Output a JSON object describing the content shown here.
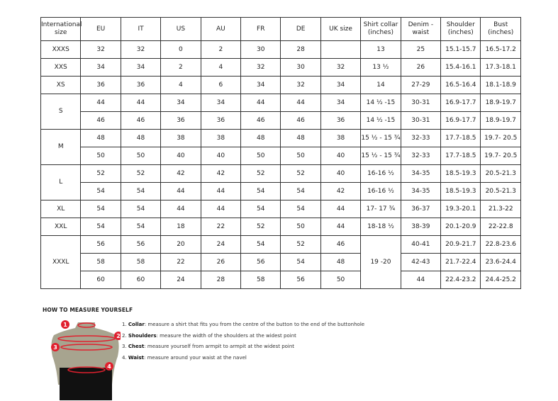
{
  "headers": [
    "International size",
    "EU",
    "IT",
    "US",
    "AU",
    "FR",
    "DE",
    "UK size",
    "Shirt collar (inches)",
    "Denim - waist",
    "Shoulder (inches)",
    "Bust (inches)"
  ],
  "groups": [
    {
      "size": "XXXS",
      "rows": [
        [
          "32",
          "32",
          "0",
          "2",
          "30",
          "28",
          "",
          "13",
          "25",
          "15.1-15.7",
          "16.5-17.2"
        ]
      ]
    },
    {
      "size": "XXS",
      "rows": [
        [
          "34",
          "34",
          "2",
          "4",
          "32",
          "30",
          "32",
          "13 ½",
          "26",
          "15.4-16.1",
          "17.3-18.1"
        ]
      ]
    },
    {
      "size": "XS",
      "rows": [
        [
          "36",
          "36",
          "4",
          "6",
          "34",
          "32",
          "34",
          "14",
          "27-29",
          "16.5-16.4",
          "18.1-18.9"
        ]
      ]
    },
    {
      "size": "S",
      "rows": [
        [
          "44",
          "44",
          "34",
          "34",
          "44",
          "44",
          "34",
          "14 ½ -15",
          "30-31",
          "16.9-17.7",
          "18.9-19.7"
        ],
        [
          "46",
          "46",
          "36",
          "36",
          "46",
          "46",
          "36",
          "14 ½ -15",
          "30-31",
          "16.9-17.7",
          "18.9-19.7"
        ]
      ]
    },
    {
      "size": "M",
      "rows": [
        [
          "48",
          "48",
          "38",
          "38",
          "48",
          "48",
          "38",
          "15 ½ - 15 ¾",
          "32-33",
          "17.7-18.5",
          "19.7- 20.5"
        ],
        [
          "50",
          "50",
          "40",
          "40",
          "50",
          "50",
          "40",
          "15 ½ - 15 ¾",
          "32-33",
          "17.7-18.5",
          "19.7- 20.5"
        ]
      ]
    },
    {
      "size": "L",
      "rows": [
        [
          "52",
          "52",
          "42",
          "42",
          "52",
          "52",
          "40",
          "16-16 ½",
          "34-35",
          "18.5-19.3",
          "20.5-21.3"
        ],
        [
          "54",
          "54",
          "44",
          "44",
          "54",
          "54",
          "42",
          "16-16 ½",
          "34-35",
          "18.5-19.3",
          "20.5-21.3"
        ]
      ]
    },
    {
      "size": "XL",
      "rows": [
        [
          "54",
          "54",
          "44",
          "44",
          "54",
          "54",
          "44",
          "17- 17 ¾",
          "36-37",
          "19.3-20.1",
          "21.3-22"
        ]
      ]
    },
    {
      "size": "XXL",
      "rows": [
        [
          "54",
          "54",
          "18",
          "22",
          "52",
          "50",
          "44",
          "18-18 ½",
          "38-39",
          "20.1-20.9",
          "22-22.8"
        ]
      ]
    },
    {
      "size": "XXXL",
      "collar": "19 -20",
      "rows": [
        [
          "56",
          "56",
          "20",
          "24",
          "54",
          "52",
          "46",
          null,
          "40-41",
          "20.9-21.7",
          "22.8-23.6"
        ],
        [
          "58",
          "58",
          "22",
          "26",
          "56",
          "54",
          "48",
          null,
          "42-43",
          "21.7-22.4",
          "23.6-24.4"
        ],
        [
          "60",
          "60",
          "24",
          "28",
          "58",
          "56",
          "50",
          null,
          "44",
          "22.4-23.2",
          "24.4-25.2"
        ]
      ]
    }
  ],
  "guide": {
    "title": "HOW TO MEASURE YOURSELF",
    "steps": [
      {
        "num": "1.",
        "term": "Collar",
        "text": ": measure a shirt that fits you from the centre of the button to the end of the buttonhole"
      },
      {
        "num": "2.",
        "term": "Shoulders",
        "text": ": measure the width of the shoulders at the widest point"
      },
      {
        "num": "3.",
        "term": "Chest",
        "text": ": measure yourself from armpit to armpit at the widest point"
      },
      {
        "num": "4.",
        "term": "Waist",
        "text": ": measure around your waist at the navel"
      }
    ],
    "markers": [
      "1",
      "2",
      "3",
      "4"
    ],
    "marker_color": "#e0202e"
  }
}
